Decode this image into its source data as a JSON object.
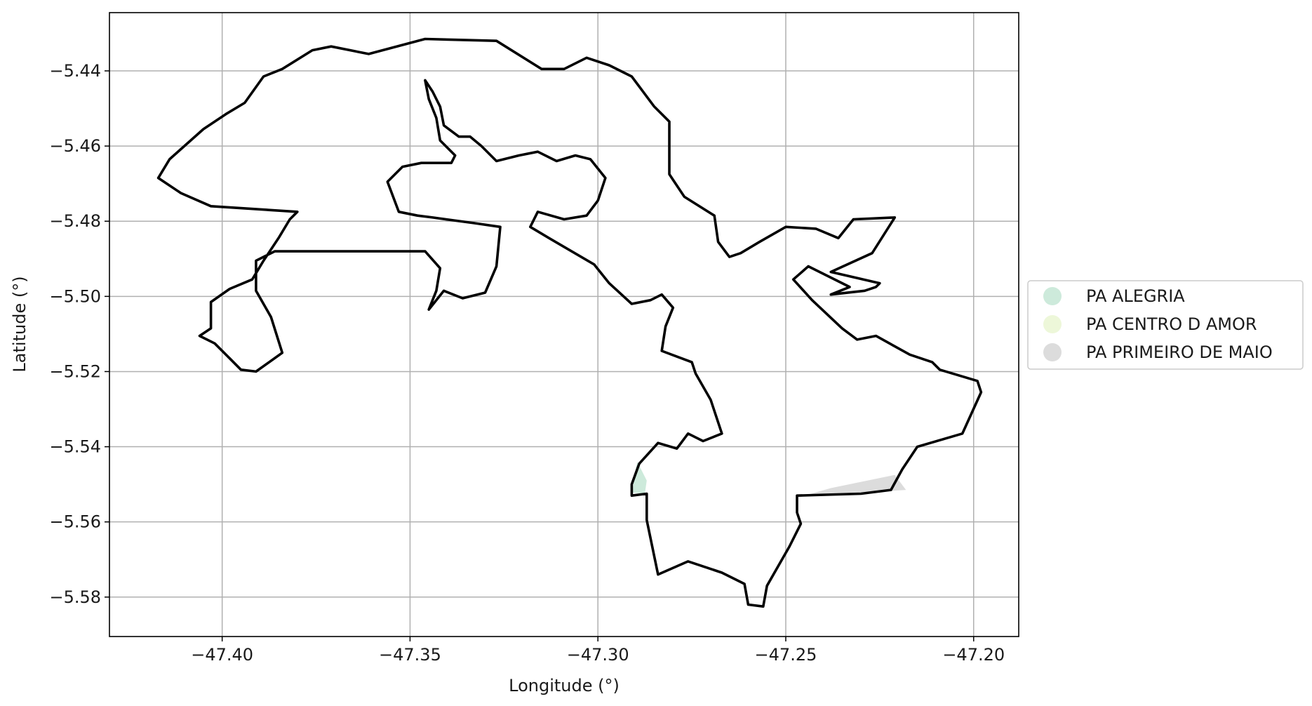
{
  "chart_data": {
    "type": "map",
    "title": "",
    "xlabel": "Longitude (°)",
    "ylabel": "Latitude (°)",
    "xlim": [
      -47.43,
      -47.188
    ],
    "ylim": [
      -5.5905,
      -5.4245
    ],
    "grid": true,
    "xticks": [
      -47.4,
      -47.35,
      -47.3,
      -47.25,
      -47.2
    ],
    "xtick_labels": [
      "−47.40",
      "−47.35",
      "−47.30",
      "−47.25",
      "−47.20"
    ],
    "yticks": [
      -5.44,
      -5.46,
      -5.48,
      -5.5,
      -5.52,
      -5.54,
      -5.56,
      -5.58
    ],
    "ytick_labels": [
      "−5.44",
      "−5.46",
      "−5.48",
      "−5.50",
      "−5.52",
      "−5.54",
      "−5.56",
      "−5.58"
    ],
    "legend": {
      "placement": "center-right, outside plot",
      "items": [
        {
          "label": "PA ALEGRIA",
          "color": "#cdeadb"
        },
        {
          "label": "PA CENTRO D AMOR",
          "color": "#edf7d9"
        },
        {
          "label": "PA PRIMEIRO DE MAIO",
          "color": "#dcdcdc"
        }
      ]
    },
    "boundary": {
      "color": "#000000",
      "rings": [
        [
          [
            -47.417,
            -5.4685
          ],
          [
            -47.414,
            -5.4635
          ],
          [
            -47.405,
            -5.4555
          ],
          [
            -47.399,
            -5.4515
          ],
          [
            -47.394,
            -5.4485
          ],
          [
            -47.389,
            -5.4415
          ],
          [
            -47.384,
            -5.4395
          ],
          [
            -47.376,
            -5.4345
          ],
          [
            -47.371,
            -5.4335
          ],
          [
            -47.361,
            -5.4355
          ],
          [
            -47.346,
            -5.4315
          ],
          [
            -47.327,
            -5.432
          ],
          [
            -47.315,
            -5.4395
          ],
          [
            -47.309,
            -5.4395
          ],
          [
            -47.303,
            -5.4365
          ],
          [
            -47.297,
            -5.4385
          ],
          [
            -47.291,
            -5.4415
          ],
          [
            -47.285,
            -5.4495
          ],
          [
            -47.281,
            -5.4535
          ],
          [
            -47.281,
            -5.4675
          ],
          [
            -47.277,
            -5.4735
          ],
          [
            -47.269,
            -5.4785
          ],
          [
            -47.268,
            -5.4855
          ],
          [
            -47.265,
            -5.4895
          ],
          [
            -47.262,
            -5.4885
          ],
          [
            -47.257,
            -5.4855
          ],
          [
            -47.25,
            -5.4815
          ],
          [
            -47.242,
            -5.482
          ],
          [
            -47.236,
            -5.4845
          ],
          [
            -47.232,
            -5.4795
          ],
          [
            -47.221,
            -5.479
          ],
          [
            -47.227,
            -5.4885
          ],
          [
            -47.238,
            -5.4935
          ],
          [
            -47.225,
            -5.4965
          ],
          [
            -47.226,
            -5.4975
          ],
          [
            -47.229,
            -5.4985
          ],
          [
            -47.238,
            -5.4995
          ],
          [
            -47.233,
            -5.4975
          ],
          [
            -47.244,
            -5.492
          ],
          [
            -47.248,
            -5.4955
          ],
          [
            -47.243,
            -5.501
          ],
          [
            -47.235,
            -5.5085
          ],
          [
            -47.231,
            -5.5115
          ],
          [
            -47.226,
            -5.5105
          ],
          [
            -47.217,
            -5.5155
          ],
          [
            -47.211,
            -5.5175
          ],
          [
            -47.209,
            -5.5195
          ],
          [
            -47.199,
            -5.5225
          ],
          [
            -47.198,
            -5.5255
          ],
          [
            -47.203,
            -5.5365
          ],
          [
            -47.215,
            -5.54
          ],
          [
            -47.219,
            -5.546
          ],
          [
            -47.222,
            -5.5515
          ],
          [
            -47.23,
            -5.5525
          ],
          [
            -47.247,
            -5.553
          ],
          [
            -47.247,
            -5.5575
          ],
          [
            -47.246,
            -5.5605
          ],
          [
            -47.249,
            -5.5665
          ],
          [
            -47.255,
            -5.577
          ],
          [
            -47.256,
            -5.5825
          ],
          [
            -47.26,
            -5.582
          ],
          [
            -47.261,
            -5.5765
          ],
          [
            -47.267,
            -5.5735
          ],
          [
            -47.276,
            -5.5705
          ],
          [
            -47.284,
            -5.574
          ],
          [
            -47.287,
            -5.5595
          ],
          [
            -47.287,
            -5.5525
          ],
          [
            -47.291,
            -5.553
          ],
          [
            -47.291,
            -5.55
          ],
          [
            -47.289,
            -5.5445
          ],
          [
            -47.284,
            -5.539
          ],
          [
            -47.279,
            -5.5405
          ],
          [
            -47.276,
            -5.5365
          ],
          [
            -47.272,
            -5.5385
          ],
          [
            -47.267,
            -5.5365
          ],
          [
            -47.27,
            -5.5275
          ],
          [
            -47.274,
            -5.5205
          ],
          [
            -47.275,
            -5.5175
          ],
          [
            -47.283,
            -5.5145
          ],
          [
            -47.282,
            -5.508
          ],
          [
            -47.28,
            -5.503
          ],
          [
            -47.283,
            -5.4995
          ],
          [
            -47.286,
            -5.501
          ],
          [
            -47.291,
            -5.502
          ],
          [
            -47.297,
            -5.4965
          ],
          [
            -47.301,
            -5.4915
          ],
          [
            -47.307,
            -5.488
          ],
          [
            -47.313,
            -5.4845
          ],
          [
            -47.318,
            -5.4815
          ],
          [
            -47.316,
            -5.4775
          ],
          [
            -47.309,
            -5.4795
          ],
          [
            -47.303,
            -5.4785
          ],
          [
            -47.3,
            -5.4745
          ],
          [
            -47.298,
            -5.4685
          ],
          [
            -47.302,
            -5.4635
          ],
          [
            -47.306,
            -5.4625
          ],
          [
            -47.311,
            -5.464
          ],
          [
            -47.316,
            -5.4615
          ],
          [
            -47.321,
            -5.4625
          ],
          [
            -47.327,
            -5.464
          ],
          [
            -47.331,
            -5.46
          ],
          [
            -47.334,
            -5.4575
          ],
          [
            -47.337,
            -5.4575
          ],
          [
            -47.341,
            -5.4545
          ],
          [
            -47.342,
            -5.4495
          ],
          [
            -47.344,
            -5.4455
          ],
          [
            -47.346,
            -5.4425
          ],
          [
            -47.345,
            -5.4475
          ],
          [
            -47.343,
            -5.4525
          ],
          [
            -47.342,
            -5.4585
          ],
          [
            -47.338,
            -5.4625
          ],
          [
            -47.339,
            -5.4645
          ],
          [
            -47.347,
            -5.4645
          ],
          [
            -47.352,
            -5.4655
          ],
          [
            -47.356,
            -5.4695
          ],
          [
            -47.353,
            -5.4775
          ],
          [
            -47.348,
            -5.4785
          ],
          [
            -47.344,
            -5.479
          ],
          [
            -47.333,
            -5.4805
          ],
          [
            -47.326,
            -5.4815
          ],
          [
            -47.327,
            -5.492
          ],
          [
            -47.33,
            -5.499
          ],
          [
            -47.336,
            -5.5005
          ],
          [
            -47.341,
            -5.4985
          ],
          [
            -47.345,
            -5.5035
          ],
          [
            -47.343,
            -5.4985
          ],
          [
            -47.342,
            -5.4925
          ],
          [
            -47.346,
            -5.488
          ],
          [
            -47.386,
            -5.488
          ],
          [
            -47.391,
            -5.4905
          ],
          [
            -47.391,
            -5.4985
          ],
          [
            -47.387,
            -5.5055
          ],
          [
            -47.384,
            -5.515
          ],
          [
            -47.391,
            -5.52
          ],
          [
            -47.395,
            -5.5195
          ],
          [
            -47.398,
            -5.5165
          ],
          [
            -47.402,
            -5.5125
          ],
          [
            -47.406,
            -5.5105
          ],
          [
            -47.403,
            -5.5085
          ],
          [
            -47.403,
            -5.5015
          ],
          [
            -47.398,
            -5.498
          ],
          [
            -47.392,
            -5.4955
          ],
          [
            -47.389,
            -5.4905
          ],
          [
            -47.385,
            -5.4845
          ],
          [
            -47.382,
            -5.4795
          ],
          [
            -47.38,
            -5.4775
          ],
          [
            -47.403,
            -5.476
          ],
          [
            -47.411,
            -5.4725
          ],
          [
            -47.417,
            -5.4685
          ]
        ]
      ]
    },
    "filled_areas": [
      {
        "name": "PA ALEGRIA",
        "color": "#cdeadb",
        "coords": [
          [
            -47.2895,
            -5.544
          ],
          [
            -47.287,
            -5.549
          ],
          [
            -47.2875,
            -5.5525
          ],
          [
            -47.2908,
            -5.5522
          ],
          [
            -47.2903,
            -5.5475
          ]
        ]
      },
      {
        "name": "PA PRIMEIRO DE MAIO",
        "color": "#dcdcdc",
        "coords": [
          [
            -47.221,
            -5.5475
          ],
          [
            -47.218,
            -5.5515
          ],
          [
            -47.23,
            -5.5523
          ],
          [
            -47.245,
            -5.553
          ],
          [
            -47.238,
            -5.551
          ]
        ]
      }
    ]
  }
}
